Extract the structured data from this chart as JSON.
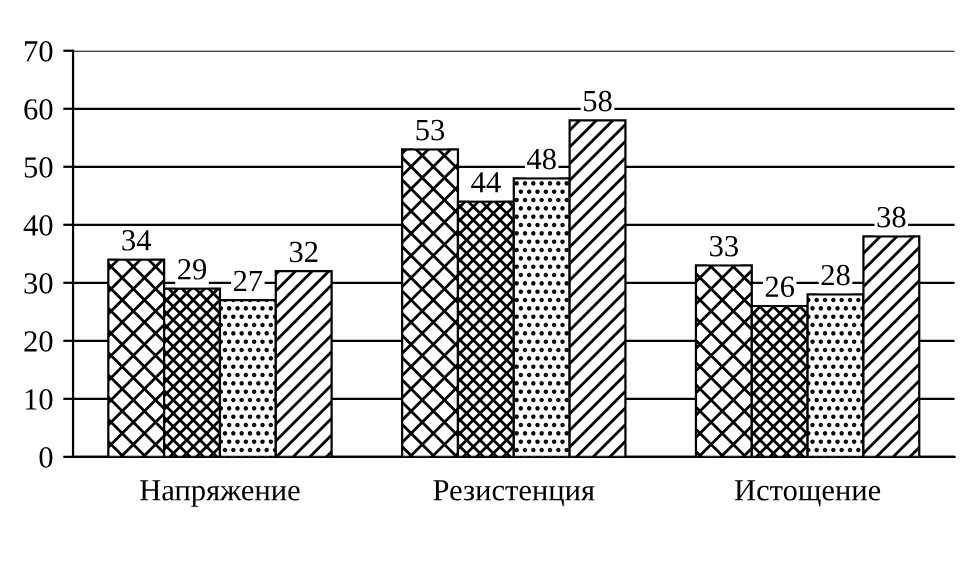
{
  "chart_data": {
    "type": "bar",
    "categories": [
      "Напряжение",
      "Резистенция",
      "Истощение"
    ],
    "series": [
      {
        "color": "#000000",
        "values": [
          34,
          53,
          33
        ]
      },
      {
        "color": "#000000",
        "values": [
          29,
          44,
          26
        ]
      },
      {
        "color": "#000000",
        "values": [
          27,
          48,
          28
        ]
      },
      {
        "color": "#000000",
        "values": [
          32,
          58,
          38
        ]
      }
    ],
    "ylim": [
      0,
      70
    ],
    "yticks": [
      0,
      10,
      20,
      30,
      40,
      50,
      60,
      70
    ],
    "grid": "y",
    "data_labels": true,
    "legend": false
  }
}
